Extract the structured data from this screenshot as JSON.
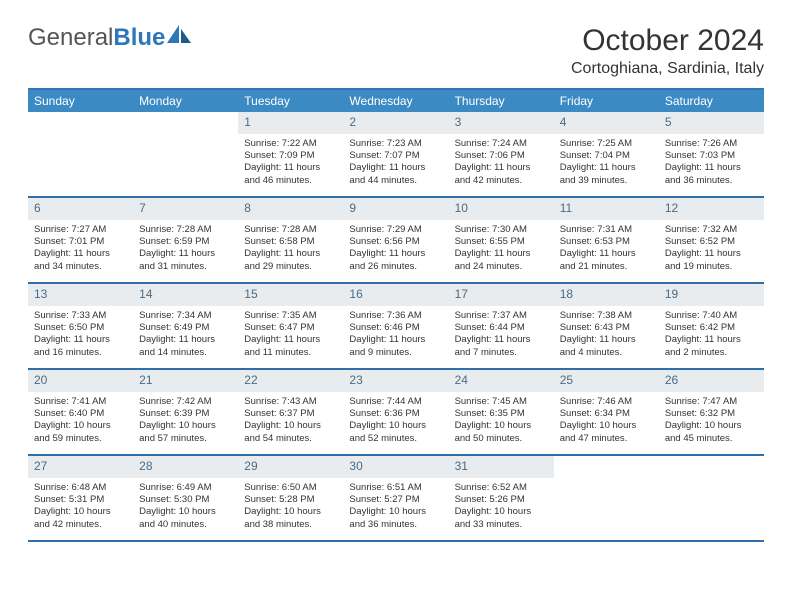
{
  "brand": {
    "part1": "General",
    "part2": "Blue"
  },
  "title": "October 2024",
  "location": "Cortoghiana, Sardinia, Italy",
  "colors": {
    "header_bg": "#3b8ac4",
    "accent_border": "#2f77b8",
    "daynum_bg": "#e9ecef",
    "text": "#333333"
  },
  "weekdays": [
    "Sunday",
    "Monday",
    "Tuesday",
    "Wednesday",
    "Thursday",
    "Friday",
    "Saturday"
  ],
  "grid": {
    "leading_empty": 2,
    "days": [
      {
        "n": 1,
        "sunrise": "7:22 AM",
        "sunset": "7:09 PM",
        "daylight": "11 hours and 46 minutes."
      },
      {
        "n": 2,
        "sunrise": "7:23 AM",
        "sunset": "7:07 PM",
        "daylight": "11 hours and 44 minutes."
      },
      {
        "n": 3,
        "sunrise": "7:24 AM",
        "sunset": "7:06 PM",
        "daylight": "11 hours and 42 minutes."
      },
      {
        "n": 4,
        "sunrise": "7:25 AM",
        "sunset": "7:04 PM",
        "daylight": "11 hours and 39 minutes."
      },
      {
        "n": 5,
        "sunrise": "7:26 AM",
        "sunset": "7:03 PM",
        "daylight": "11 hours and 36 minutes."
      },
      {
        "n": 6,
        "sunrise": "7:27 AM",
        "sunset": "7:01 PM",
        "daylight": "11 hours and 34 minutes."
      },
      {
        "n": 7,
        "sunrise": "7:28 AM",
        "sunset": "6:59 PM",
        "daylight": "11 hours and 31 minutes."
      },
      {
        "n": 8,
        "sunrise": "7:28 AM",
        "sunset": "6:58 PM",
        "daylight": "11 hours and 29 minutes."
      },
      {
        "n": 9,
        "sunrise": "7:29 AM",
        "sunset": "6:56 PM",
        "daylight": "11 hours and 26 minutes."
      },
      {
        "n": 10,
        "sunrise": "7:30 AM",
        "sunset": "6:55 PM",
        "daylight": "11 hours and 24 minutes."
      },
      {
        "n": 11,
        "sunrise": "7:31 AM",
        "sunset": "6:53 PM",
        "daylight": "11 hours and 21 minutes."
      },
      {
        "n": 12,
        "sunrise": "7:32 AM",
        "sunset": "6:52 PM",
        "daylight": "11 hours and 19 minutes."
      },
      {
        "n": 13,
        "sunrise": "7:33 AM",
        "sunset": "6:50 PM",
        "daylight": "11 hours and 16 minutes."
      },
      {
        "n": 14,
        "sunrise": "7:34 AM",
        "sunset": "6:49 PM",
        "daylight": "11 hours and 14 minutes."
      },
      {
        "n": 15,
        "sunrise": "7:35 AM",
        "sunset": "6:47 PM",
        "daylight": "11 hours and 11 minutes."
      },
      {
        "n": 16,
        "sunrise": "7:36 AM",
        "sunset": "6:46 PM",
        "daylight": "11 hours and 9 minutes."
      },
      {
        "n": 17,
        "sunrise": "7:37 AM",
        "sunset": "6:44 PM",
        "daylight": "11 hours and 7 minutes."
      },
      {
        "n": 18,
        "sunrise": "7:38 AM",
        "sunset": "6:43 PM",
        "daylight": "11 hours and 4 minutes."
      },
      {
        "n": 19,
        "sunrise": "7:40 AM",
        "sunset": "6:42 PM",
        "daylight": "11 hours and 2 minutes."
      },
      {
        "n": 20,
        "sunrise": "7:41 AM",
        "sunset": "6:40 PM",
        "daylight": "10 hours and 59 minutes."
      },
      {
        "n": 21,
        "sunrise": "7:42 AM",
        "sunset": "6:39 PM",
        "daylight": "10 hours and 57 minutes."
      },
      {
        "n": 22,
        "sunrise": "7:43 AM",
        "sunset": "6:37 PM",
        "daylight": "10 hours and 54 minutes."
      },
      {
        "n": 23,
        "sunrise": "7:44 AM",
        "sunset": "6:36 PM",
        "daylight": "10 hours and 52 minutes."
      },
      {
        "n": 24,
        "sunrise": "7:45 AM",
        "sunset": "6:35 PM",
        "daylight": "10 hours and 50 minutes."
      },
      {
        "n": 25,
        "sunrise": "7:46 AM",
        "sunset": "6:34 PM",
        "daylight": "10 hours and 47 minutes."
      },
      {
        "n": 26,
        "sunrise": "7:47 AM",
        "sunset": "6:32 PM",
        "daylight": "10 hours and 45 minutes."
      },
      {
        "n": 27,
        "sunrise": "6:48 AM",
        "sunset": "5:31 PM",
        "daylight": "10 hours and 42 minutes."
      },
      {
        "n": 28,
        "sunrise": "6:49 AM",
        "sunset": "5:30 PM",
        "daylight": "10 hours and 40 minutes."
      },
      {
        "n": 29,
        "sunrise": "6:50 AM",
        "sunset": "5:28 PM",
        "daylight": "10 hours and 38 minutes."
      },
      {
        "n": 30,
        "sunrise": "6:51 AM",
        "sunset": "5:27 PM",
        "daylight": "10 hours and 36 minutes."
      },
      {
        "n": 31,
        "sunrise": "6:52 AM",
        "sunset": "5:26 PM",
        "daylight": "10 hours and 33 minutes."
      }
    ],
    "labels": {
      "sunrise": "Sunrise: ",
      "sunset": "Sunset: ",
      "daylight": "Daylight: "
    }
  }
}
